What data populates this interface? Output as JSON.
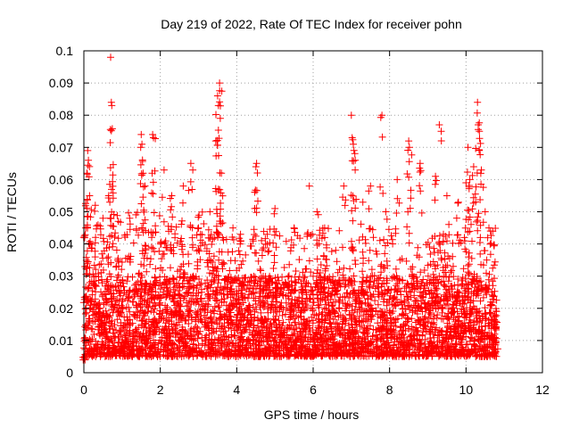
{
  "chart_data": {
    "type": "scatter",
    "title": "Day 219 of 2022, Rate Of TEC Index for receiver pohn",
    "xlabel": "GPS time / hours",
    "ylabel": "ROTI / TECUs",
    "xlim": [
      0,
      12
    ],
    "ylim": [
      0,
      0.1
    ],
    "xticks": [
      "0",
      "2",
      "4",
      "6",
      "8",
      "10",
      "12"
    ],
    "yticks": [
      "0",
      "0.01",
      "0.02",
      "0.03",
      "0.04",
      "0.05",
      "0.06",
      "0.07",
      "0.08",
      "0.09",
      "0.1"
    ],
    "grid": true,
    "marker": "+",
    "color": "#ff0000",
    "data_extent_x": [
      0,
      10.8
    ],
    "baseline_range": [
      0.005,
      0.03
    ],
    "series": [
      {
        "name": "ROTI",
        "note": "dense cloud of roughly 6000 samples, mostly between 0.01 and 0.03 TECU/min; representative points below",
        "points": [
          [
            0.02,
            0.005
          ],
          [
            0.05,
            0.045
          ],
          [
            0.08,
            0.062
          ],
          [
            0.1,
            0.069
          ],
          [
            0.12,
            0.066
          ],
          [
            0.15,
            0.055
          ],
          [
            0.3,
            0.052
          ],
          [
            0.5,
            0.048
          ],
          [
            0.65,
            0.055
          ],
          [
            0.68,
            0.053
          ],
          [
            0.7,
            0.098
          ],
          [
            0.72,
            0.084
          ],
          [
            0.73,
            0.083
          ],
          [
            0.9,
            0.047
          ],
          [
            1.2,
            0.048
          ],
          [
            1.5,
            0.074
          ],
          [
            1.52,
            0.071
          ],
          [
            1.55,
            0.062
          ],
          [
            1.6,
            0.058
          ],
          [
            1.8,
            0.074
          ],
          [
            1.82,
            0.073
          ],
          [
            2.1,
            0.063
          ],
          [
            2.3,
            0.055
          ],
          [
            2.6,
            0.058
          ],
          [
            2.8,
            0.065
          ],
          [
            2.85,
            0.063
          ],
          [
            3.0,
            0.045
          ],
          [
            3.3,
            0.05
          ],
          [
            3.45,
            0.072
          ],
          [
            3.5,
            0.086
          ],
          [
            3.52,
            0.083
          ],
          [
            3.55,
            0.09
          ],
          [
            3.57,
            0.079
          ],
          [
            3.6,
            0.062
          ],
          [
            3.9,
            0.045
          ],
          [
            4.1,
            0.043
          ],
          [
            4.5,
            0.064
          ],
          [
            4.52,
            0.065
          ],
          [
            4.8,
            0.043
          ],
          [
            5.0,
            0.051
          ],
          [
            5.5,
            0.045
          ],
          [
            5.9,
            0.058
          ],
          [
            6.1,
            0.05
          ],
          [
            6.3,
            0.045
          ],
          [
            6.8,
            0.058
          ],
          [
            7.0,
            0.08
          ],
          [
            7.02,
            0.073
          ],
          [
            7.05,
            0.071
          ],
          [
            7.1,
            0.063
          ],
          [
            7.3,
            0.053
          ],
          [
            7.5,
            0.058
          ],
          [
            7.8,
            0.08
          ],
          [
            7.9,
            0.05
          ],
          [
            8.2,
            0.06
          ],
          [
            8.5,
            0.072
          ],
          [
            8.52,
            0.07
          ],
          [
            8.8,
            0.065
          ],
          [
            9.2,
            0.061
          ],
          [
            9.3,
            0.077
          ],
          [
            9.35,
            0.075
          ],
          [
            9.5,
            0.055
          ],
          [
            9.8,
            0.053
          ],
          [
            10.0,
            0.059
          ],
          [
            10.05,
            0.07
          ],
          [
            10.1,
            0.06
          ],
          [
            10.2,
            0.064
          ],
          [
            10.3,
            0.084
          ],
          [
            10.32,
            0.077
          ],
          [
            10.35,
            0.075
          ],
          [
            10.4,
            0.063
          ],
          [
            10.5,
            0.05
          ],
          [
            10.6,
            0.045
          ],
          [
            10.7,
            0.044
          ],
          [
            10.75,
            0.012
          ],
          [
            10.78,
            0.016
          ]
        ]
      }
    ]
  }
}
